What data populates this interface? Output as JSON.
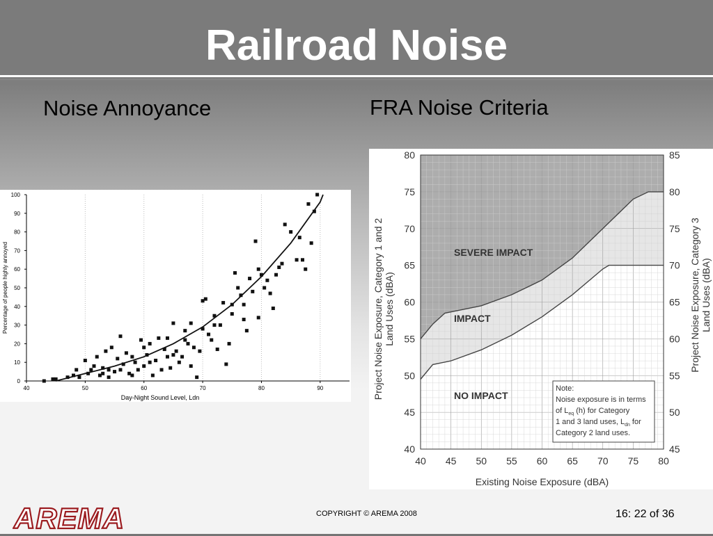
{
  "slide": {
    "title": "Railroad Noise",
    "left_heading": "Noise Annoyance",
    "right_heading": "FRA Noise Criteria",
    "copyright": "COPYRIGHT © AREMA 2008",
    "page": "16: 22 of 36",
    "logo_text": "AREMA"
  },
  "colors": {
    "title_bar": "#7b7b7b",
    "severe_region": "#adadad",
    "impact_region": "#e6e6e6",
    "logo_red": "#9b1b1f"
  },
  "chart_data": [
    {
      "type": "scatter",
      "title": "",
      "xlabel": "Day-Night Sound Level, Ldn",
      "ylabel": "Percentage of people highly annoyed",
      "xlim": [
        40,
        95
      ],
      "ylim": [
        0,
        100
      ],
      "xticks": [
        40,
        50,
        60,
        70,
        80,
        90
      ],
      "yticks": [
        0,
        10,
        20,
        30,
        40,
        50,
        60,
        70,
        80,
        90,
        100
      ],
      "grid": "vertical dotted",
      "points": [
        [
          43,
          0
        ],
        [
          44.5,
          1
        ],
        [
          45,
          1
        ],
        [
          47,
          2
        ],
        [
          48,
          3
        ],
        [
          48.5,
          6
        ],
        [
          49,
          2
        ],
        [
          50,
          11
        ],
        [
          50.5,
          4
        ],
        [
          51,
          6
        ],
        [
          51.5,
          8
        ],
        [
          52,
          13
        ],
        [
          52.5,
          3
        ],
        [
          53,
          4
        ],
        [
          53.5,
          16
        ],
        [
          54,
          2
        ],
        [
          54,
          6
        ],
        [
          54.5,
          18
        ],
        [
          55,
          5
        ],
        [
          55.5,
          12
        ],
        [
          56,
          6
        ],
        [
          56.5,
          9
        ],
        [
          57,
          15
        ],
        [
          57.5,
          4
        ],
        [
          58,
          3
        ],
        [
          58.5,
          10
        ],
        [
          59,
          6
        ],
        [
          59.5,
          22
        ],
        [
          60,
          8
        ],
        [
          60,
          18
        ],
        [
          60.5,
          14
        ],
        [
          61,
          10
        ],
        [
          61.5,
          3
        ],
        [
          62,
          11
        ],
        [
          62.5,
          23
        ],
        [
          63,
          6
        ],
        [
          63.5,
          17
        ],
        [
          64,
          13
        ],
        [
          64,
          23
        ],
        [
          64.5,
          7
        ],
        [
          65,
          31
        ],
        [
          65.5,
          16
        ],
        [
          66,
          10
        ],
        [
          66.5,
          13
        ],
        [
          67,
          22
        ],
        [
          67.5,
          20
        ],
        [
          68,
          31
        ],
        [
          68,
          8
        ],
        [
          68.5,
          18
        ],
        [
          69,
          2
        ],
        [
          69.5,
          16
        ],
        [
          70,
          28
        ],
        [
          70.5,
          44
        ],
        [
          71,
          25
        ],
        [
          71.5,
          22
        ],
        [
          72,
          35
        ],
        [
          72.5,
          17
        ],
        [
          73,
          30
        ],
        [
          73.5,
          42
        ],
        [
          74,
          9
        ],
        [
          74.5,
          20
        ],
        [
          75,
          41
        ],
        [
          75.5,
          58
        ],
        [
          76,
          50
        ],
        [
          76.5,
          46
        ],
        [
          77,
          33
        ],
        [
          77.5,
          27
        ],
        [
          78,
          55
        ],
        [
          78.5,
          48
        ],
        [
          79,
          75
        ],
        [
          79.5,
          60
        ],
        [
          80,
          57
        ],
        [
          80.5,
          50
        ],
        [
          81,
          54
        ],
        [
          81.5,
          47
        ],
        [
          82,
          39
        ],
        [
          82.5,
          57
        ],
        [
          83,
          61
        ],
        [
          84,
          84
        ],
        [
          85,
          80
        ],
        [
          86,
          65
        ],
        [
          87,
          65
        ],
        [
          87.5,
          60
        ],
        [
          88,
          95
        ],
        [
          89,
          91
        ],
        [
          89.5,
          100
        ],
        [
          88.5,
          74
        ],
        [
          86.5,
          77
        ],
        [
          83.5,
          63
        ],
        [
          79.5,
          34
        ],
        [
          77,
          41
        ],
        [
          75,
          36
        ],
        [
          72,
          30
        ],
        [
          70,
          43
        ],
        [
          67,
          27
        ],
        [
          65,
          14
        ],
        [
          61,
          20
        ],
        [
          58,
          13
        ],
        [
          56,
          24
        ],
        [
          53,
          7
        ]
      ],
      "fit_curve": [
        [
          45,
          0
        ],
        [
          50,
          4
        ],
        [
          55,
          8
        ],
        [
          60,
          13
        ],
        [
          65,
          20
        ],
        [
          70,
          29
        ],
        [
          75,
          41
        ],
        [
          80,
          56
        ],
        [
          85,
          74
        ],
        [
          90,
          96
        ],
        [
          90.5,
          100
        ]
      ]
    },
    {
      "type": "area",
      "title": "",
      "xlabel": "Existing Noise Exposure (dBA)",
      "ylabel_left": "Project Noise Exposure, Category 1 and 2 Land Uses (dBA)",
      "ylabel_right": "Project Noise Exposure, Category 3 Land Uses (dBA)",
      "xlim": [
        40,
        80
      ],
      "ylim_left": [
        40,
        80
      ],
      "ylim_right": [
        45,
        85
      ],
      "xticks": [
        40,
        45,
        50,
        55,
        60,
        65,
        70,
        75,
        80
      ],
      "yticks_left": [
        40,
        45,
        50,
        55,
        60,
        65,
        70,
        75,
        80
      ],
      "yticks_right": [
        45,
        50,
        55,
        60,
        65,
        70,
        75,
        80,
        85
      ],
      "grid": true,
      "regions": [
        "SEVERE IMPACT",
        "IMPACT",
        "NO IMPACT"
      ],
      "severe_threshold": [
        [
          40,
          55
        ],
        [
          42,
          57
        ],
        [
          44,
          58.5
        ],
        [
          50,
          59.5
        ],
        [
          55,
          61
        ],
        [
          60,
          63
        ],
        [
          65,
          66
        ],
        [
          70,
          70
        ],
        [
          75,
          74
        ],
        [
          77.5,
          75
        ],
        [
          80,
          75
        ]
      ],
      "impact_threshold": [
        [
          40,
          49.5
        ],
        [
          42,
          51.5
        ],
        [
          45,
          52
        ],
        [
          50,
          53.5
        ],
        [
          55,
          55.5
        ],
        [
          60,
          58
        ],
        [
          65,
          61
        ],
        [
          70,
          64.5
        ],
        [
          71,
          65
        ],
        [
          80,
          65
        ]
      ],
      "note_lines": [
        "Note:",
        "Noise exposure is in terms",
        "of L (h) for Category",
        "1 and 3 land uses, L for",
        "Category 2 land uses."
      ],
      "note_subscripts": [
        "eq",
        "dn"
      ]
    }
  ]
}
